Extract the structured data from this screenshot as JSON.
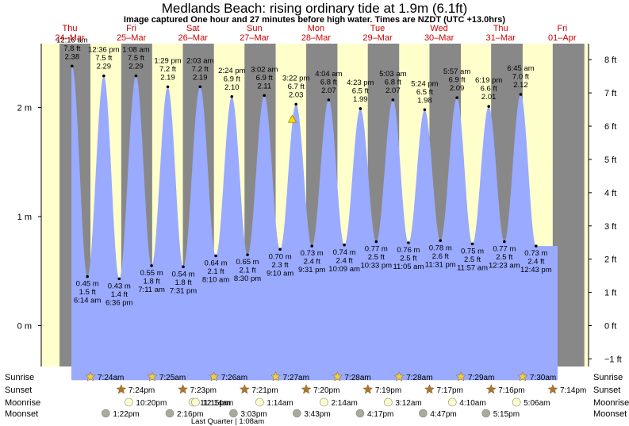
{
  "title": "Medlands Beach: rising  ordinary tide at 1.9m (6.1ft)",
  "subtitle": "Image captured One hour and 27 minutes before high water. Times are NZDT (UTC +13.0hrs)",
  "colors": {
    "day_bg": "#ffffcc",
    "night_bg": "#888888",
    "tide_fill": "#99aaff",
    "day_label": "#cc0000",
    "sun_star": "#eecc44",
    "sunset_star": "#aa7733",
    "moonrise": "#ffffcc",
    "moonset": "#aaaa99",
    "marker": "#ffdd00"
  },
  "chart_data": {
    "type": "area",
    "title": "Medlands Beach: rising  ordinary tide at 1.9m (6.1ft)",
    "left_axis": {
      "unit": "m",
      "ticks": [
        "2 m",
        "1 m",
        "0 m"
      ],
      "tick_values": [
        2,
        1,
        0
      ]
    },
    "right_axis": {
      "unit": "ft",
      "ticks": [
        "8 ft",
        "7 ft",
        "6 ft",
        "5 ft",
        "4 ft",
        "3 ft",
        "2 ft",
        "1 ft",
        "0 ft",
        "−1 ft"
      ],
      "tick_values": [
        8,
        7,
        6,
        5,
        4,
        3,
        2,
        1,
        0,
        -1
      ]
    },
    "ylim_m": [
      -0.5,
      2.6
    ],
    "day_labels": [
      {
        "weekday": "Thu",
        "date": "24–Mar"
      },
      {
        "weekday": "Fri",
        "date": "25–Mar"
      },
      {
        "weekday": "Sat",
        "date": "26–Mar"
      },
      {
        "weekday": "Sun",
        "date": "27–Mar"
      },
      {
        "weekday": "Mon",
        "date": "28–Mar"
      },
      {
        "weekday": "Tue",
        "date": "29–Mar"
      },
      {
        "weekday": "Wed",
        "date": "30–Mar"
      },
      {
        "weekday": "Thu",
        "date": "31–Mar"
      },
      {
        "weekday": "Fri",
        "date": "01–Apr"
      }
    ],
    "high_tides": [
      {
        "time": "12:16 am",
        "ft": "7.8 ft",
        "m": 2.38,
        "label": "2.38 m"
      },
      {
        "time": "12:36 pm",
        "ft": "7.5 ft",
        "m": 2.29,
        "label": "2.29 m"
      },
      {
        "time": "1:08 am",
        "ft": "7.5 ft",
        "m": 2.29,
        "label": "2.29 m"
      },
      {
        "time": "1:29 pm",
        "ft": "7.2 ft",
        "m": 2.19,
        "label": "2.19 m"
      },
      {
        "time": "2:03 am",
        "ft": "7.2 ft",
        "m": 2.19,
        "label": "2.19 m"
      },
      {
        "time": "2:24 pm",
        "ft": "6.9 ft",
        "m": 2.1,
        "label": "2.10 m"
      },
      {
        "time": "3:02 am",
        "ft": "6.9 ft",
        "m": 2.11,
        "label": "2.11 m"
      },
      {
        "time": "3:22 pm",
        "ft": "6.7 ft",
        "m": 2.03,
        "label": "2.03 m"
      },
      {
        "time": "4:04 am",
        "ft": "6.8 ft",
        "m": 2.07,
        "label": "2.07 m"
      },
      {
        "time": "4:23 pm",
        "ft": "6.5 ft",
        "m": 1.99,
        "label": "1.99 m"
      },
      {
        "time": "5:03 am",
        "ft": "6.8 ft",
        "m": 2.07,
        "label": "2.07 m"
      },
      {
        "time": "5:24 pm",
        "ft": "6.5 ft",
        "m": 1.98,
        "label": "1.98 m"
      },
      {
        "time": "5:57 am",
        "ft": "6.9 ft",
        "m": 2.09,
        "label": "2.09 m"
      },
      {
        "time": "6:19 pm",
        "ft": "6.6 ft",
        "m": 2.01,
        "label": "2.01 m"
      },
      {
        "time": "6:45 am",
        "ft": "7.0 ft",
        "m": 2.12,
        "label": "2.12 m"
      }
    ],
    "low_tides": [
      {
        "time": "6:14 am",
        "ft": "1.5 ft",
        "m": 0.45,
        "label": "0.45 m"
      },
      {
        "time": "6:36 pm",
        "ft": "1.4 ft",
        "m": 0.43,
        "label": "0.43 m"
      },
      {
        "time": "7:11 am",
        "ft": "1.8 ft",
        "m": 0.55,
        "label": "0.55 m"
      },
      {
        "time": "7:31 pm",
        "ft": "1.8 ft",
        "m": 0.54,
        "label": "0.54 m"
      },
      {
        "time": "8:10 am",
        "ft": "2.1 ft",
        "m": 0.64,
        "label": "0.64 m"
      },
      {
        "time": "8:30 pm",
        "ft": "2.1 ft",
        "m": 0.65,
        "label": "0.65 m"
      },
      {
        "time": "9:10 am",
        "ft": "2.3 ft",
        "m": 0.7,
        "label": "0.70 m"
      },
      {
        "time": "9:31 pm",
        "ft": "2.4 ft",
        "m": 0.73,
        "label": "0.73 m"
      },
      {
        "time": "10:09 am",
        "ft": "2.4 ft",
        "m": 0.74,
        "label": "0.74 m"
      },
      {
        "time": "10:33 pm",
        "ft": "2.5 ft",
        "m": 0.77,
        "label": "0.77 m"
      },
      {
        "time": "11:05 am",
        "ft": "2.5 ft",
        "m": 0.76,
        "label": "0.76 m"
      },
      {
        "time": "11:31 pm",
        "ft": "2.6 ft",
        "m": 0.78,
        "label": "0.78 m"
      },
      {
        "time": "11:57 am",
        "ft": "2.5 ft",
        "m": 0.75,
        "label": "0.75 m"
      },
      {
        "time": "12:23 am",
        "ft": "2.5 ft",
        "m": 0.77,
        "label": "0.77 m"
      },
      {
        "time": "12:43 pm",
        "ft": "2.4 ft",
        "m": 0.73,
        "label": "0.73 m"
      }
    ],
    "current": {
      "m": 1.9,
      "ft": 6.1
    }
  },
  "rows": {
    "sunrise": {
      "label": "Sunrise",
      "times": [
        "7:24am",
        "7:25am",
        "7:26am",
        "7:27am",
        "7:28am",
        "7:28am",
        "7:29am",
        "7:30am"
      ]
    },
    "sunset": {
      "label": "Sunset",
      "times": [
        "7:24pm",
        "7:23pm",
        "7:21pm",
        "7:20pm",
        "7:19pm",
        "7:17pm",
        "7:16pm",
        "7:14pm"
      ]
    },
    "moonrise": {
      "label": "Moonrise",
      "times": [
        "10:20pm",
        "11:15pm",
        "12:14am",
        "1:14am",
        "2:14am",
        "3:12am",
        "4:10am",
        "5:06am"
      ]
    },
    "moonset": {
      "label": "Moonset",
      "times": [
        "1:22pm",
        "2:16pm",
        "3:03pm",
        "3:43pm",
        "4:17pm",
        "4:47pm",
        "5:15pm"
      ]
    },
    "moon_phase_note": "Last Quarter | 1:08am"
  }
}
